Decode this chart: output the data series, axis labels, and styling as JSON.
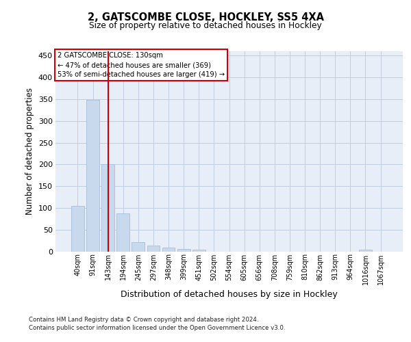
{
  "title1": "2, GATSCOMBE CLOSE, HOCKLEY, SS5 4XA",
  "title2": "Size of property relative to detached houses in Hockley",
  "xlabel": "Distribution of detached houses by size in Hockley",
  "ylabel": "Number of detached properties",
  "categories": [
    "40sqm",
    "91sqm",
    "143sqm",
    "194sqm",
    "245sqm",
    "297sqm",
    "348sqm",
    "399sqm",
    "451sqm",
    "502sqm",
    "554sqm",
    "605sqm",
    "656sqm",
    "708sqm",
    "759sqm",
    "810sqm",
    "862sqm",
    "913sqm",
    "964sqm",
    "1016sqm",
    "1067sqm"
  ],
  "values": [
    105,
    348,
    200,
    88,
    22,
    13,
    8,
    6,
    4,
    0,
    0,
    0,
    0,
    0,
    0,
    0,
    0,
    0,
    0,
    4,
    0
  ],
  "bar_color": "#c9d9ed",
  "bar_edgecolor": "#a8bfd8",
  "vline_x_index": 2,
  "vline_color": "#cc0000",
  "annotation_lines": [
    "2 GATSCOMBE CLOSE: 130sqm",
    "← 47% of detached houses are smaller (369)",
    "53% of semi-detached houses are larger (419) →"
  ],
  "annotation_box_edgecolor": "#cc0000",
  "ylim": [
    0,
    460
  ],
  "yticks": [
    0,
    50,
    100,
    150,
    200,
    250,
    300,
    350,
    400,
    450
  ],
  "grid_color": "#c0cce0",
  "background_color": "#e8eef8",
  "footer_line1": "Contains HM Land Registry data © Crown copyright and database right 2024.",
  "footer_line2": "Contains public sector information licensed under the Open Government Licence v3.0."
}
